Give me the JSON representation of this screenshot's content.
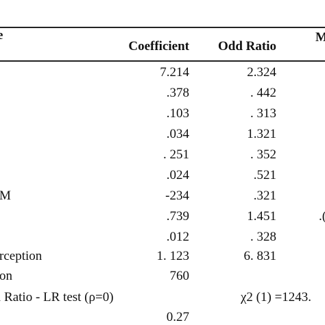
{
  "header": {
    "col0": "e",
    "coefficient": "Coefficient",
    "odd_ratio": "Odd Ratio",
    "col3": "M"
  },
  "rows": [
    {
      "label": "",
      "coef": "7.214",
      "odd": "2.324",
      "extra": ""
    },
    {
      "label": "",
      "coef": ".378",
      "odd": ". 442",
      "extra": ""
    },
    {
      "label": "",
      "coef": ".103",
      "odd": ". 313",
      "extra": ""
    },
    {
      "label": "",
      "coef": ".034",
      "odd": "1.321",
      "extra": ""
    },
    {
      "label": "",
      "coef": ". 251",
      "odd": ". 352",
      "extra": ""
    },
    {
      "label": "",
      "coef": ".024",
      "odd": ".521",
      "extra": ""
    },
    {
      "label": "M",
      "coef": "-234",
      "odd": ".321",
      "extra": ""
    },
    {
      "label": "",
      "coef": ".739",
      "odd": "1.451",
      "extra": ".("
    },
    {
      "label": "",
      "coef": ".012",
      "odd": ". 328",
      "extra": ""
    },
    {
      "label": "rception",
      "coef": "1. 123",
      "odd": "6. 831",
      "extra": ""
    },
    {
      "label": "on",
      "coef": "760",
      "odd": "",
      "extra": ""
    },
    {
      "label": "l Ratio - LR test (ρ=0)",
      "coef": "",
      "odd": "χ2 (1) =1243.",
      "extra": ""
    },
    {
      "label": "",
      "coef": "0.27",
      "odd": "",
      "extra": ""
    }
  ]
}
